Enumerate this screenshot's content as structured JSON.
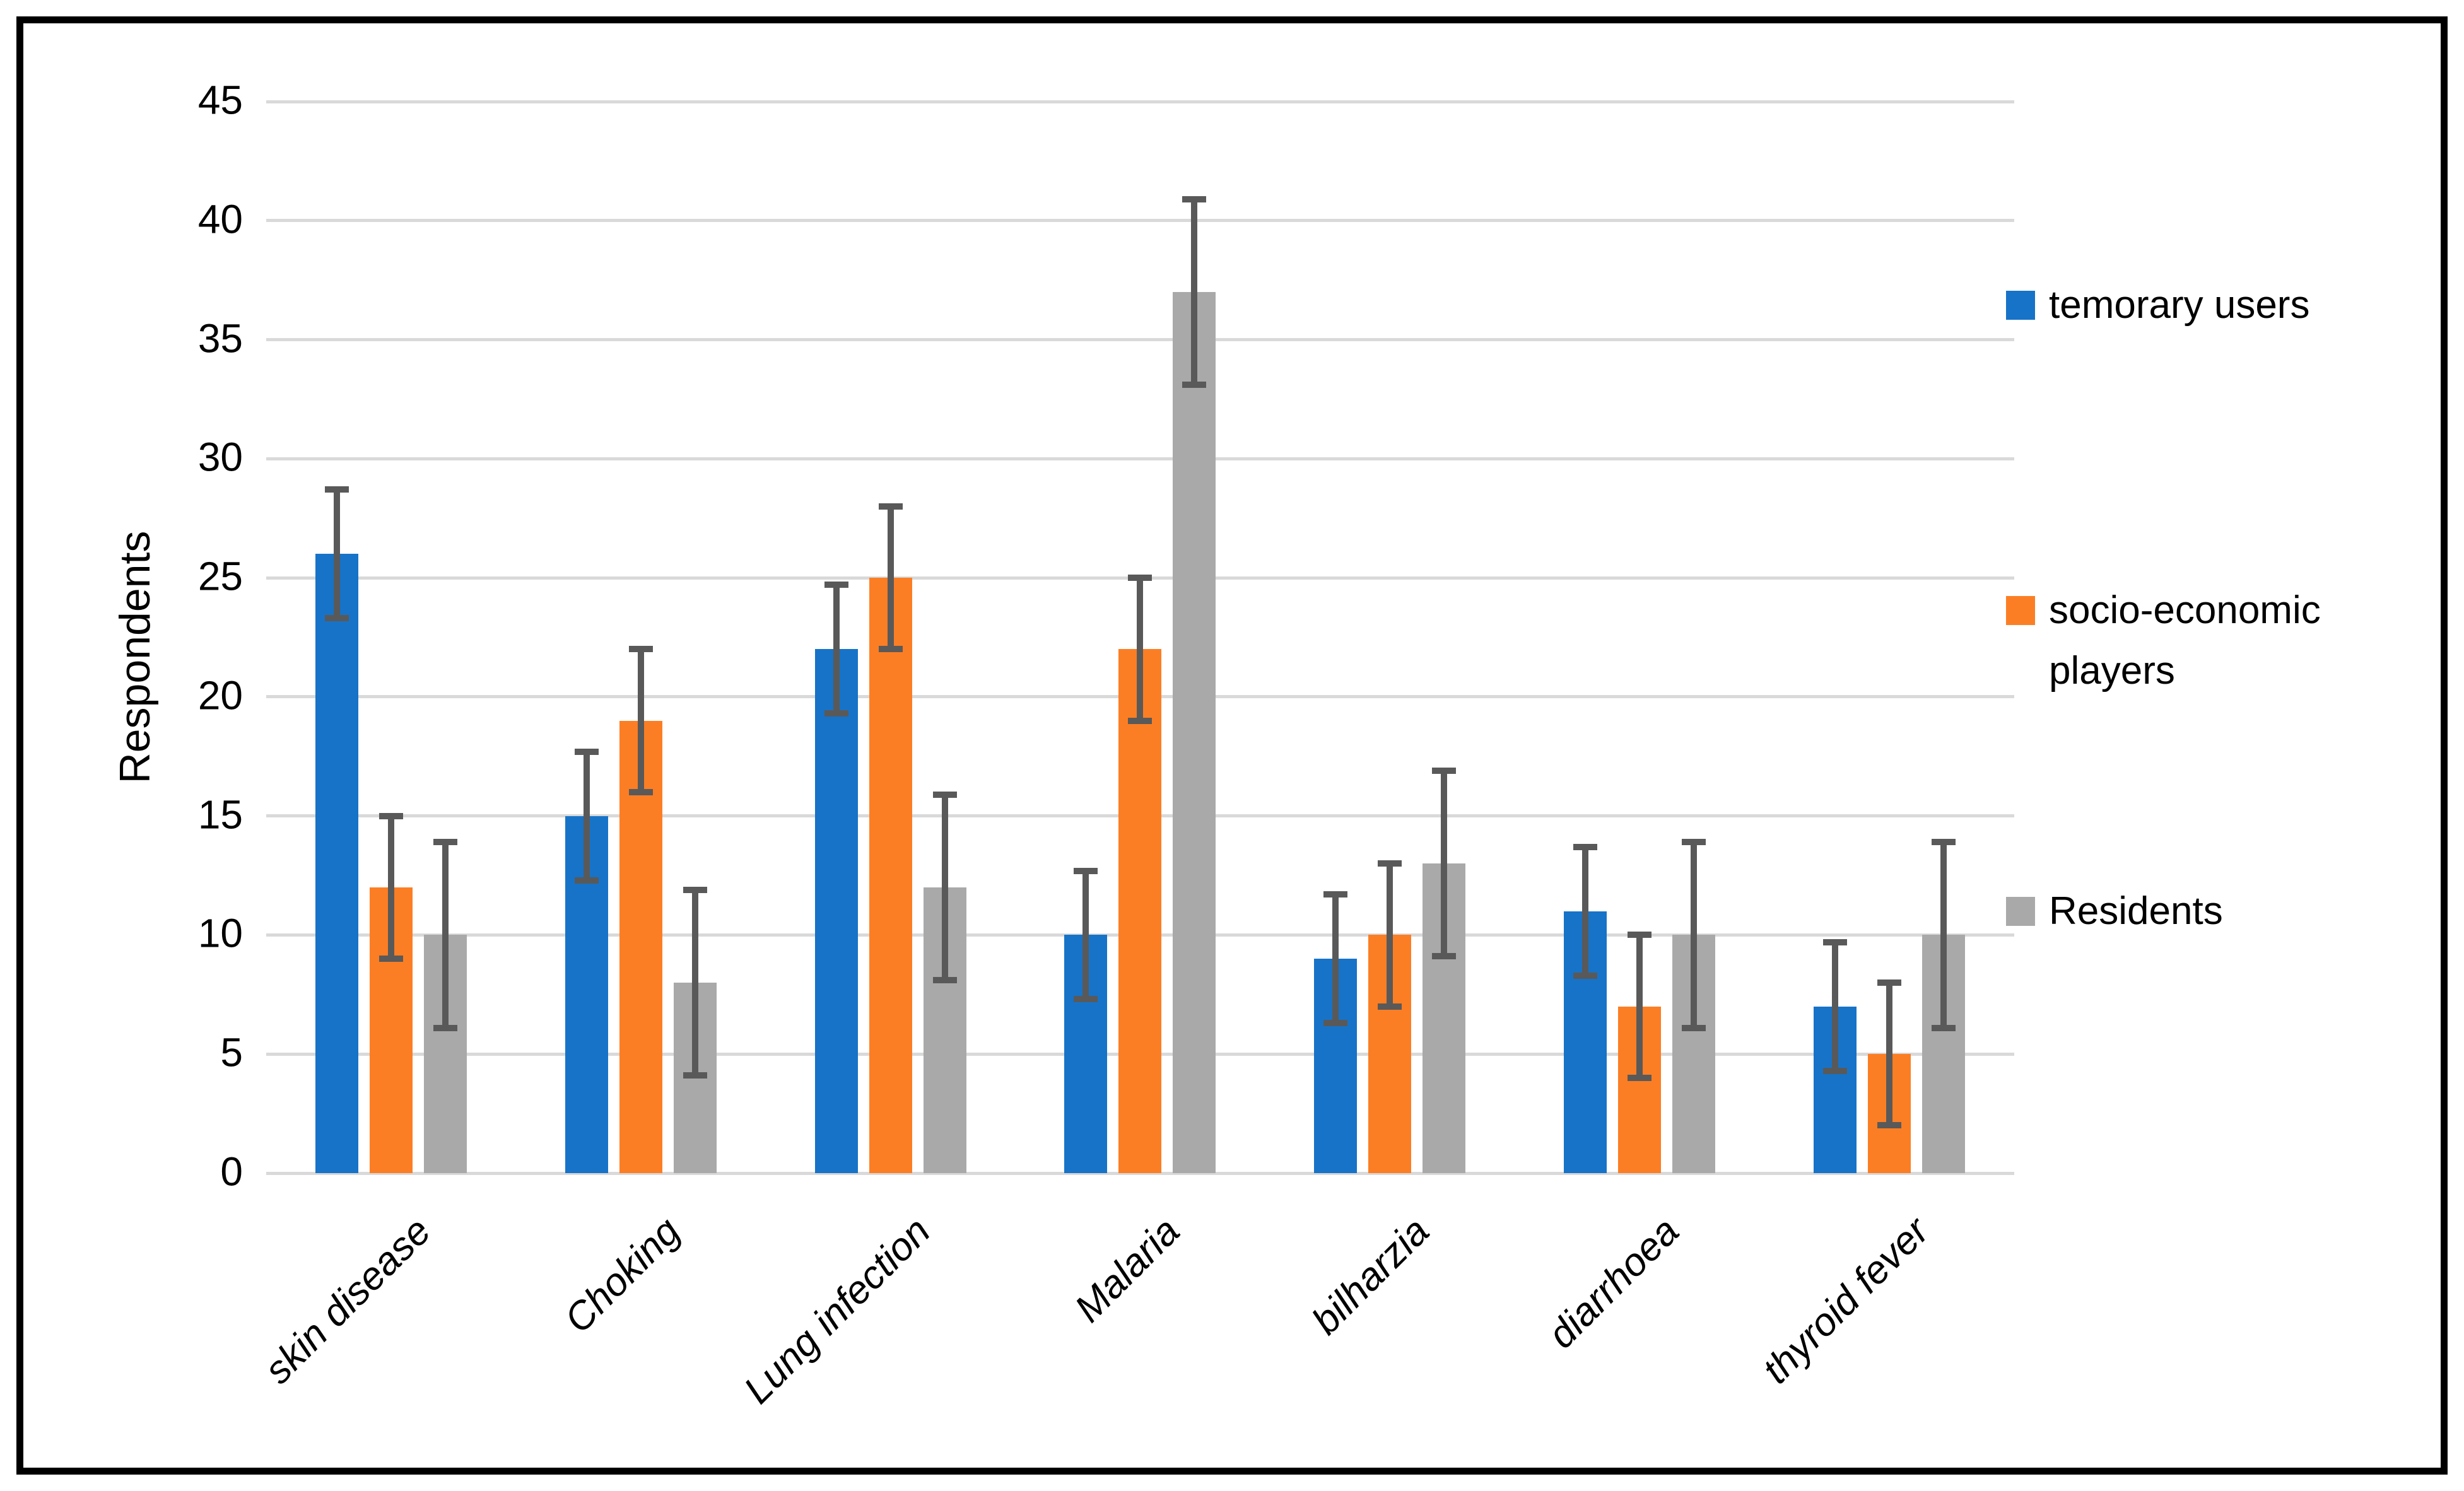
{
  "chart_data": {
    "type": "bar",
    "title": "",
    "xlabel": "",
    "ylabel": "Respondents",
    "ylim": [
      0,
      45
    ],
    "yticks": [
      0,
      5,
      10,
      15,
      20,
      25,
      30,
      35,
      40,
      45
    ],
    "grid": true,
    "categories": [
      "skin disease",
      "Choking",
      "Lung infection",
      "Malaria",
      "bilharzia",
      "diarrhoea",
      "thyroid fever"
    ],
    "series": [
      {
        "name": "temorary users",
        "legend_lines": [
          "temorary users"
        ],
        "color": "#1773C8",
        "values": [
          26,
          15,
          22,
          10,
          9,
          11,
          7
        ],
        "error": 2.7
      },
      {
        "name": "socio-economic players",
        "legend_lines": [
          "socio-economic",
          "players"
        ],
        "color": "#FC7E24",
        "values": [
          12,
          19,
          25,
          22,
          10,
          7,
          5
        ],
        "error": 3.0
      },
      {
        "name": "Residents",
        "legend_lines": [
          "Residents"
        ],
        "color": "#A9A9A9",
        "values": [
          10,
          8,
          12,
          37,
          13,
          10,
          10
        ],
        "error": 3.9
      }
    ],
    "legend_position": "right",
    "colors": {
      "gridline": "#D9D9D9",
      "axis_line": "#D9D9D9",
      "error_bar": "#595959",
      "text": "#000000",
      "border": "#000000",
      "background": "#FFFFFF"
    }
  }
}
